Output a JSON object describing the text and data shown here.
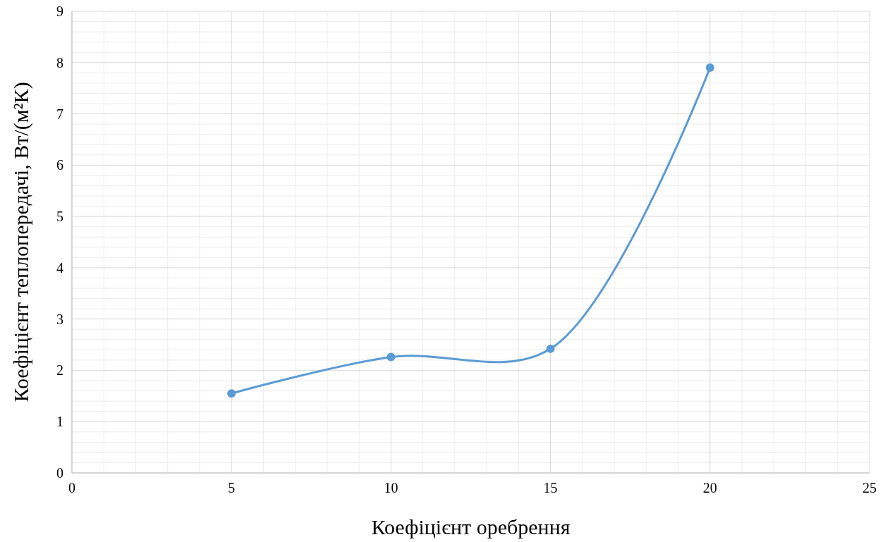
{
  "chart_data": {
    "type": "line",
    "xlabel": "Коефіцієнт оребрення",
    "ylabel": "Коефіцієнт теплопередачі, Вт/(м²К)",
    "x": [
      5,
      10,
      15,
      20
    ],
    "series": [
      {
        "color": "#5b9bd5",
        "values": [
          1.55,
          2.26,
          2.42,
          7.9
        ]
      }
    ],
    "xlim": [
      0,
      25
    ],
    "xticks": [
      0,
      5,
      10,
      15,
      20,
      25
    ],
    "ylim": [
      0,
      9
    ],
    "yticks": [
      0,
      1,
      2,
      3,
      4,
      5,
      6,
      7,
      8,
      9
    ],
    "grid": true,
    "marker": "circle",
    "line_style": "solid"
  }
}
